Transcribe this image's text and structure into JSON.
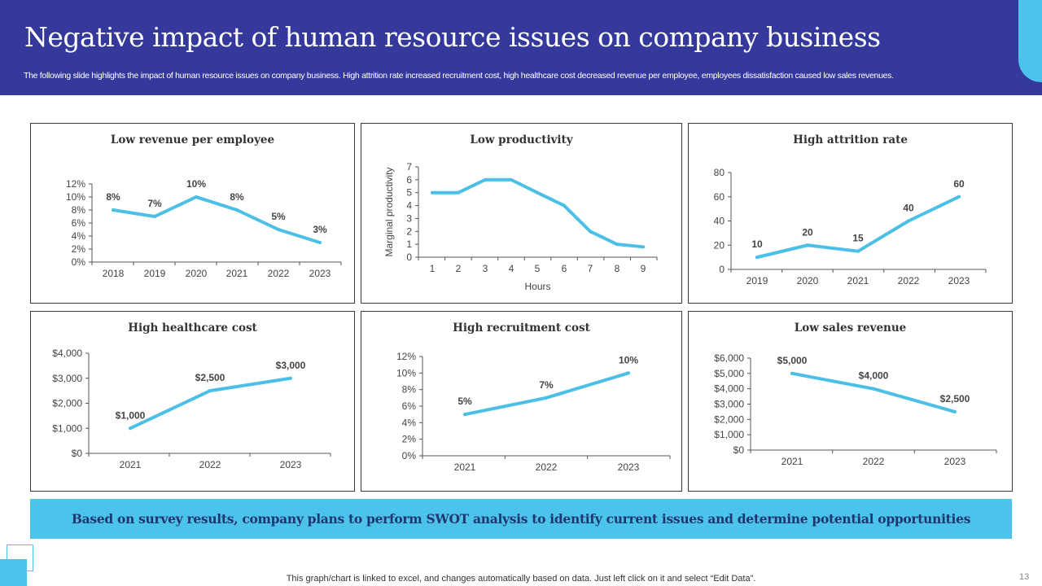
{
  "header": {
    "title": "Negative impact of human resource issues on company business",
    "subtitle": "The following slide highlights the impact of human resource issues on company business. High attrition rate increased recruitment cost, high healthcare cost decreased revenue per employee, employees dissatisfaction caused low sales revenues."
  },
  "colors": {
    "header_bg": "#35399b",
    "accent": "#4cc3ea",
    "line": "#4bbfe6",
    "banner_text": "#1f3770"
  },
  "chart_data": [
    {
      "type": "line",
      "title": "Low revenue per employee",
      "categories": [
        "2018",
        "2019",
        "2020",
        "2021",
        "2022",
        "2023"
      ],
      "values": [
        8,
        7,
        10,
        8,
        5,
        3
      ],
      "data_labels": [
        "8%",
        "7%",
        "10%",
        "8%",
        "5%",
        "3%"
      ],
      "ylim": [
        0,
        12
      ],
      "yticks": [
        "0%",
        "2%",
        "4%",
        "6%",
        "8%",
        "10%",
        "12%"
      ],
      "xlabel": "",
      "ylabel": "",
      "grid": false
    },
    {
      "type": "line",
      "title": "Low productivity",
      "categories": [
        "1",
        "2",
        "3",
        "4",
        "5",
        "6",
        "7",
        "8",
        "9"
      ],
      "values": [
        5,
        5,
        6,
        6,
        5,
        4,
        2,
        1,
        0.8
      ],
      "data_labels": [],
      "ylim": [
        0,
        7
      ],
      "yticks": [
        "0",
        "1",
        "2",
        "3",
        "4",
        "5",
        "6",
        "7"
      ],
      "xlabel": "Hours",
      "ylabel": "Marginal productivity",
      "grid": false
    },
    {
      "type": "line",
      "title": "High attrition rate",
      "categories": [
        "2019",
        "2020",
        "2021",
        "2022",
        "2023"
      ],
      "values": [
        10,
        20,
        15,
        40,
        60
      ],
      "data_labels": [
        "10",
        "20",
        "15",
        "40",
        "60"
      ],
      "ylim": [
        0,
        80
      ],
      "yticks": [
        "0",
        "20",
        "40",
        "60",
        "80"
      ],
      "xlabel": "",
      "ylabel": "",
      "grid": false
    },
    {
      "type": "line",
      "title": "High healthcare cost",
      "categories": [
        "2021",
        "2022",
        "2023"
      ],
      "values": [
        1000,
        2500,
        3000
      ],
      "data_labels": [
        "$1,000",
        "$2,500",
        "$3,000"
      ],
      "ylim": [
        0,
        4000
      ],
      "yticks": [
        "$0",
        "$1,000",
        "$2,000",
        "$3,000",
        "$4,000"
      ],
      "xlabel": "",
      "ylabel": "",
      "grid": false
    },
    {
      "type": "line",
      "title": "High recruitment cost",
      "categories": [
        "2021",
        "2022",
        "2023"
      ],
      "values": [
        5,
        7,
        10
      ],
      "data_labels": [
        "5%",
        "7%",
        "10%"
      ],
      "ylim": [
        0,
        12
      ],
      "yticks": [
        "0%",
        "2%",
        "4%",
        "6%",
        "8%",
        "10%",
        "12%"
      ],
      "xlabel": "",
      "ylabel": "",
      "grid": false
    },
    {
      "type": "line",
      "title": "Low sales revenue",
      "categories": [
        "2021",
        "2022",
        "2023"
      ],
      "values": [
        5000,
        4000,
        2500
      ],
      "data_labels": [
        "$5,000",
        "$4,000",
        "$2,500"
      ],
      "ylim": [
        0,
        6000
      ],
      "yticks": [
        "$0",
        "$1,000",
        "$2,000",
        "$3,000",
        "$4,000",
        "$5,000",
        "$6,000"
      ],
      "xlabel": "",
      "ylabel": "",
      "grid": false
    }
  ],
  "banner": {
    "text": "Based on survey results, company plans to perform SWOT analysis to identify current issues and determine potential opportunities"
  },
  "footer": {
    "note": "This graph/chart is linked to excel, and changes automatically based on data. Just left click on it and select “Edit Data”.",
    "page_number": "13"
  }
}
